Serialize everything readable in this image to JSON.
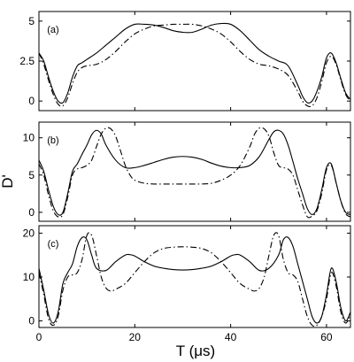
{
  "chart_data": {
    "type": "line",
    "xlabel": "T (μs)",
    "ylabel": "D'",
    "xlim": [
      0,
      65
    ],
    "xticks": [
      0,
      20,
      40,
      60
    ],
    "panels": [
      {
        "label": "(a)",
        "ylim": [
          -0.6,
          5.6
        ],
        "yticks": [
          0,
          2.5,
          5
        ],
        "ytick_labels": [
          "0",
          "2.5",
          "5"
        ],
        "series": [
          {
            "style": "solid",
            "x": [
              0,
              1,
              2,
              3,
              4,
              5,
              6,
              7,
              8,
              9,
              10,
              12,
              14,
              16,
              18,
              20,
              22,
              24,
              26,
              28,
              30,
              32,
              34,
              36,
              38,
              40,
              42,
              44,
              46,
              48,
              50,
              52,
              54,
              55,
              56,
              57,
              58,
              59,
              60,
              61,
              62,
              63,
              64,
              65
            ],
            "y": [
              3.0,
              2.5,
              1.5,
              0.6,
              0.0,
              -0.1,
              0.5,
              1.5,
              2.2,
              2.4,
              2.6,
              3.0,
              3.5,
              4.0,
              4.5,
              4.8,
              4.8,
              4.75,
              4.6,
              4.4,
              4.3,
              4.3,
              4.5,
              4.75,
              4.85,
              4.8,
              4.4,
              3.8,
              3.2,
              2.8,
              2.5,
              2.2,
              1.0,
              0.3,
              -0.1,
              0.0,
              0.6,
              1.5,
              2.7,
              3.0,
              2.4,
              1.4,
              0.5,
              0.1
            ]
          },
          {
            "style": "dash-dot",
            "x": [
              0,
              1,
              2,
              3,
              4,
              5,
              6,
              7,
              8,
              9,
              10,
              12,
              14,
              16,
              18,
              20,
              22,
              24,
              26,
              28,
              30,
              32,
              34,
              36,
              38,
              40,
              42,
              44,
              46,
              48,
              50,
              52,
              54,
              55,
              56,
              57,
              58,
              59,
              60,
              61,
              62,
              63,
              64,
              65
            ],
            "y": [
              3.0,
              2.3,
              1.3,
              0.4,
              -0.2,
              -0.3,
              0.2,
              1.1,
              1.8,
              2.1,
              2.2,
              2.3,
              2.6,
              3.1,
              3.7,
              4.2,
              4.5,
              4.7,
              4.75,
              4.8,
              4.8,
              4.8,
              4.7,
              4.5,
              4.2,
              3.7,
              3.1,
              2.6,
              2.3,
              2.2,
              2.0,
              1.6,
              0.6,
              0.0,
              -0.3,
              -0.3,
              0.2,
              1.2,
              2.4,
              2.8,
              2.3,
              1.3,
              0.4,
              0.0
            ]
          }
        ]
      },
      {
        "label": "(b)",
        "ylim": [
          -1.2,
          12.1
        ],
        "yticks": [
          0,
          5,
          10
        ],
        "ytick_labels": [
          "0",
          "5",
          "10"
        ],
        "series": [
          {
            "style": "solid",
            "x": [
              0,
              1,
              2,
              3,
              4,
              5,
              6,
              7,
              8,
              9,
              10,
              11,
              12,
              13,
              14,
              16,
              18,
              20,
              22,
              24,
              26,
              28,
              30,
              32,
              34,
              36,
              38,
              40,
              42,
              44,
              46,
              48,
              49,
              50,
              51,
              52,
              53,
              54,
              55,
              56,
              57,
              58,
              59,
              60,
              61,
              62,
              63,
              64,
              65
            ],
            "y": [
              7.0,
              5.5,
              3.0,
              0.8,
              -0.3,
              0.0,
              2.5,
              5.5,
              6.5,
              7.8,
              9.0,
              10.4,
              11.0,
              10.5,
              9.0,
              7.0,
              6.0,
              6.0,
              6.3,
              6.7,
              7.1,
              7.4,
              7.5,
              7.4,
              7.1,
              6.6,
              6.2,
              6.0,
              6.0,
              6.3,
              7.5,
              9.8,
              10.8,
              11.0,
              10.5,
              9.0,
              6.8,
              4.5,
              2.5,
              0.5,
              -0.3,
              0.5,
              3.0,
              6.0,
              6.5,
              4.0,
              1.5,
              0.0,
              -0.3
            ]
          },
          {
            "style": "dash-dot",
            "x": [
              0,
              1,
              2,
              3,
              4,
              5,
              6,
              7,
              8,
              9,
              10,
              11,
              12,
              13,
              14,
              15,
              16,
              17,
              18,
              19,
              20,
              22,
              24,
              26,
              28,
              30,
              32,
              34,
              36,
              38,
              40,
              42,
              44,
              45,
              46,
              47,
              48,
              49,
              50,
              51,
              52,
              53,
              54,
              55,
              56,
              57,
              58,
              59,
              60,
              61,
              62,
              63,
              64,
              65
            ],
            "y": [
              6.5,
              5.0,
              2.3,
              0.2,
              -0.6,
              -0.3,
              2.0,
              5.0,
              5.8,
              6.0,
              6.3,
              7.0,
              8.8,
              10.5,
              11.3,
              11.2,
              10.2,
              8.3,
              6.3,
              5.0,
              4.3,
              3.9,
              3.8,
              3.8,
              3.8,
              3.8,
              3.8,
              3.8,
              3.9,
              4.3,
              5.0,
              6.3,
              8.8,
              10.5,
              11.3,
              11.2,
              10.2,
              8.0,
              6.3,
              6.0,
              5.8,
              5.0,
              3.0,
              1.0,
              -0.6,
              -0.5,
              0.2,
              2.5,
              5.7,
              6.3,
              4.0,
              1.5,
              -0.2,
              -0.6
            ]
          }
        ]
      },
      {
        "label": "(c)",
        "ylim": [
          -1.5,
          21.7
        ],
        "yticks": [
          0,
          10,
          20
        ],
        "ytick_labels": [
          "0",
          "10",
          "20"
        ],
        "series": [
          {
            "style": "solid",
            "x": [
              0,
              1,
              2,
              3,
              4,
              5,
              6,
              7,
              8,
              9,
              10,
              11,
              12,
              14,
              16,
              18,
              19,
              20,
              22,
              24,
              26,
              28,
              30,
              32,
              34,
              36,
              38,
              40,
              41,
              42,
              44,
              46,
              48,
              50,
              51,
              52,
              53,
              54,
              55,
              56,
              57,
              58,
              59,
              60,
              61,
              62,
              63,
              64,
              65
            ],
            "y": [
              12.0,
              7.0,
              1.5,
              -0.5,
              2.0,
              8.5,
              11.0,
              13.0,
              17.0,
              19.0,
              18.5,
              15.0,
              12.0,
              11.5,
              13.5,
              15.0,
              15.1,
              14.8,
              13.5,
              12.5,
              12.0,
              11.7,
              11.6,
              11.7,
              12.0,
              12.5,
              13.5,
              14.8,
              15.1,
              15.0,
              13.5,
              11.5,
              12.0,
              15.0,
              18.5,
              19.0,
              17.0,
              13.0,
              9.0,
              5.0,
              1.0,
              -0.5,
              1.0,
              6.0,
              12.0,
              9.0,
              3.0,
              0.0,
              2.0
            ]
          },
          {
            "style": "dash-dot",
            "x": [
              0,
              1,
              2,
              3,
              4,
              5,
              6,
              7,
              8,
              9,
              10,
              11,
              12,
              13,
              14,
              15,
              16,
              18,
              20,
              22,
              24,
              26,
              28,
              30,
              32,
              34,
              36,
              38,
              40,
              42,
              44,
              45,
              46,
              47,
              48,
              49,
              50,
              51,
              52,
              53,
              54,
              55,
              56,
              57,
              58,
              59,
              60,
              61,
              62,
              63,
              64,
              65
            ],
            "y": [
              11.0,
              6.0,
              0.5,
              -1.0,
              1.0,
              7.0,
              10.0,
              10.5,
              11.0,
              14.0,
              19.5,
              19.5,
              15.0,
              10.0,
              7.5,
              6.8,
              7.2,
              8.5,
              11.0,
              13.5,
              15.5,
              16.5,
              16.8,
              16.9,
              16.8,
              16.5,
              15.5,
              13.5,
              11.0,
              8.5,
              7.2,
              6.8,
              7.5,
              10.0,
              15.0,
              19.5,
              19.5,
              14.0,
              11.0,
              10.5,
              9.0,
              5.0,
              1.0,
              -1.0,
              -1.0,
              1.0,
              5.0,
              11.0,
              8.0,
              2.0,
              -0.5,
              1.5
            ]
          }
        ]
      }
    ]
  }
}
